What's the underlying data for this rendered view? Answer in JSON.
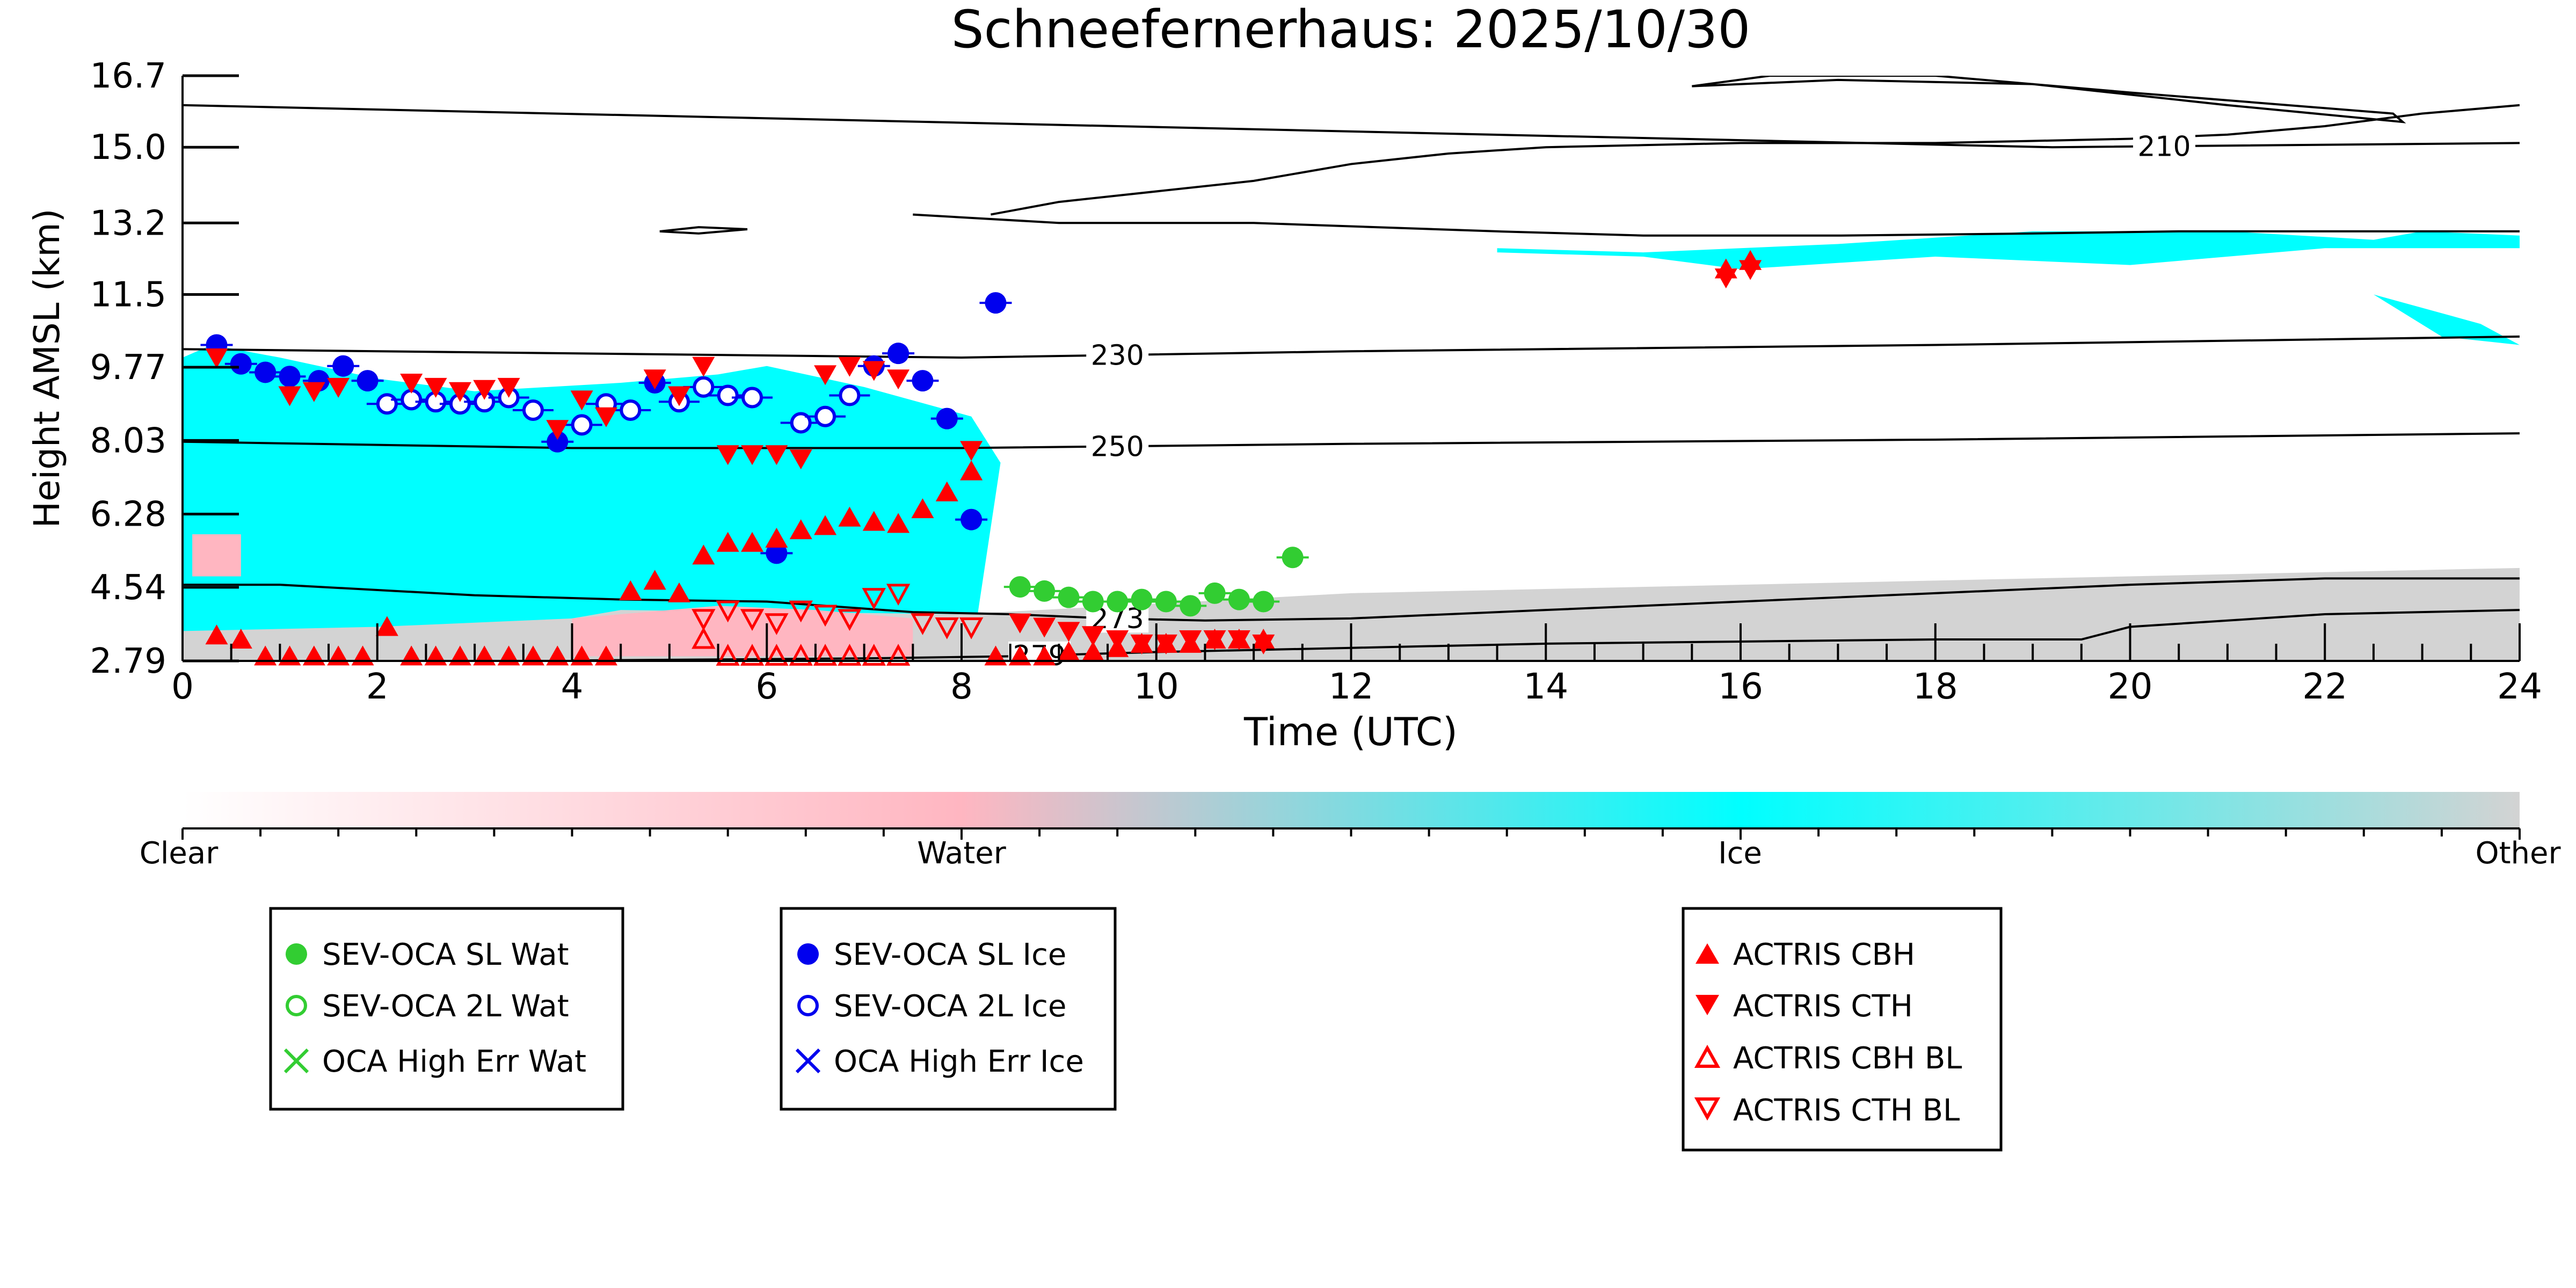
{
  "colors": {
    "clear": "#ffffff",
    "water": "#ffb6c1",
    "ice": "#00ffff",
    "other": "#d3d3d3",
    "sev_wat": "#32cd32",
    "sev_ice": "#0000ee",
    "actris": "#ff0000",
    "contour": "#000000"
  },
  "chart_data": {
    "type": "scatter",
    "title": "Schneefernerhaus: 2025/10/30",
    "xlabel": "Time (UTC)",
    "ylabel": "Height AMSL (km)",
    "xlim": [
      0,
      24
    ],
    "ylim": [
      2.79,
      16.7
    ],
    "xticks": [
      "0",
      "2",
      "4",
      "6",
      "8",
      "10",
      "12",
      "14",
      "16",
      "18",
      "20",
      "22",
      "24"
    ],
    "yticks": [
      "2.79",
      "4.54",
      "6.28",
      "8.03",
      "9.77",
      "11.5",
      "13.2",
      "15.0",
      "16.7"
    ],
    "colorbar": {
      "labels": [
        "Clear",
        "Water",
        "Ice",
        "Other"
      ]
    },
    "contours": [
      {
        "label": "210",
        "x": [
          0,
          19.2,
          24
        ],
        "y": [
          16.0,
          15.0,
          15.1
        ]
      },
      {
        "label": "230",
        "x": [
          0,
          8,
          12,
          18,
          24
        ],
        "y": [
          10.2,
          10.0,
          10.15,
          10.3,
          10.5
        ]
      },
      {
        "label": "250",
        "x": [
          0,
          4,
          8,
          12,
          18,
          24
        ],
        "y": [
          8.0,
          7.85,
          7.85,
          7.95,
          8.05,
          8.2
        ]
      },
      {
        "label": "273",
        "x": [
          0,
          1,
          3,
          4.5,
          6,
          7.5,
          8.5,
          9.5,
          10.5,
          12,
          14,
          16,
          18,
          20,
          22,
          24
        ],
        "y": [
          4.6,
          4.6,
          4.35,
          4.25,
          4.2,
          3.95,
          3.9,
          3.8,
          3.75,
          3.8,
          4.0,
          4.2,
          4.4,
          4.6,
          4.75,
          4.75
        ]
      },
      {
        "label": "279",
        "x": [
          4,
          7,
          8.5,
          10,
          12,
          14,
          16,
          18,
          19.5,
          20,
          22,
          24
        ],
        "y": [
          2.8,
          2.85,
          2.9,
          3.0,
          3.1,
          3.2,
          3.25,
          3.3,
          3.3,
          3.6,
          3.9,
          4.0
        ]
      },
      {
        "label": "",
        "x": [
          7.5,
          9,
          11,
          13.5,
          15,
          17,
          19,
          20.5,
          22,
          24
        ],
        "y": [
          13.4,
          13.2,
          13.2,
          13.0,
          12.9,
          12.9,
          12.95,
          13.0,
          13.0,
          13.0
        ]
      },
      {
        "label": "",
        "x": [
          8.3,
          9,
          11,
          12,
          13,
          14,
          15,
          16,
          17,
          18,
          19,
          20,
          21,
          22,
          23,
          24
        ],
        "y": [
          13.4,
          13.7,
          14.2,
          14.6,
          14.85,
          15.0,
          15.05,
          15.1,
          15.1,
          15.1,
          15.15,
          15.2,
          15.3,
          15.5,
          15.8,
          16.0
        ]
      },
      {
        "label": "",
        "x": [
          15.5,
          17,
          19,
          21,
          22.8,
          22.7,
          20,
          18,
          16.3,
          15.5
        ],
        "y": [
          16.45,
          16.6,
          16.5,
          16.0,
          15.6,
          15.8,
          16.3,
          16.7,
          16.7,
          16.45
        ]
      },
      {
        "label": "",
        "x": [
          4.9,
          5.3,
          5.8,
          5.3,
          4.9
        ],
        "y": [
          13.0,
          13.1,
          13.05,
          12.95,
          13.0
        ]
      }
    ],
    "regions": [
      {
        "class": "ice",
        "x": [
          0,
          0.3,
          1,
          2,
          3,
          4.5,
          5.5,
          6,
          7,
          8.1,
          8.4,
          8.1,
          7,
          6,
          4,
          2,
          0
        ],
        "y": [
          10.0,
          10.3,
          10.0,
          9.5,
          9.2,
          9.4,
          9.6,
          9.8,
          9.3,
          8.6,
          7.5,
          2.9,
          2.9,
          2.9,
          2.9,
          2.9,
          2.9
        ]
      },
      {
        "class": "ice",
        "x": [
          9.5,
          11,
          12,
          11.5,
          10,
          9.5
        ],
        "y": [
          3.8,
          3.7,
          3.4,
          2.8,
          2.8,
          3.5
        ]
      },
      {
        "class": "ice",
        "x": [
          13.5,
          15,
          17,
          19,
          21,
          22.5,
          23,
          24,
          24,
          22,
          20,
          18,
          16,
          15,
          13.5
        ],
        "y": [
          12.6,
          12.5,
          12.7,
          13.0,
          13.0,
          12.8,
          13.0,
          12.9,
          12.6,
          12.6,
          12.2,
          12.4,
          12.1,
          12.4,
          12.5
        ]
      },
      {
        "class": "ice",
        "x": [
          22.5,
          23.2,
          24,
          23.6,
          22.5
        ],
        "y": [
          11.5,
          10.5,
          10.3,
          10.8,
          11.5
        ]
      },
      {
        "class": "other",
        "x": [
          0,
          2,
          4,
          4.5,
          8,
          12,
          14,
          16,
          18,
          20,
          22,
          24,
          24,
          0
        ],
        "y": [
          3.5,
          3.6,
          3.8,
          4.0,
          3.9,
          4.4,
          4.5,
          4.6,
          4.7,
          4.8,
          4.9,
          5.0,
          2.79,
          2.79
        ]
      },
      {
        "class": "water",
        "x": [
          4,
          5.5,
          6.5,
          7.5,
          7.5,
          4
        ],
        "y": [
          3.8,
          4.1,
          4.0,
          3.8,
          2.9,
          2.9
        ]
      },
      {
        "class": "water",
        "x": [
          0.1,
          0.6,
          0.6,
          0.1
        ],
        "y": [
          5.8,
          5.8,
          4.8,
          4.8
        ]
      }
    ],
    "series": [
      {
        "name": "SEV-OCA SL Wat",
        "marker": "circle",
        "x": [
          8.6,
          8.85,
          9.1,
          9.35,
          9.6,
          9.85,
          10.1,
          10.35,
          10.6,
          10.85,
          11.1,
          11.4
        ],
        "y": [
          4.55,
          4.45,
          4.3,
          4.2,
          4.2,
          4.25,
          4.2,
          4.1,
          4.4,
          4.25,
          4.2,
          5.25
        ]
      },
      {
        "name": "SEV-OCA 2L Wat",
        "marker": "circle-open",
        "x": [],
        "y": []
      },
      {
        "name": "OCA High Err Wat",
        "marker": "x",
        "x": [],
        "y": []
      },
      {
        "name": "SEV-OCA SL Ice",
        "marker": "circle",
        "x": [
          0.35,
          0.6,
          0.85,
          1.1,
          1.4,
          1.65,
          1.9,
          3.85,
          4.85,
          6.1,
          7.1,
          7.35,
          7.6,
          7.85,
          8.1,
          8.35
        ],
        "y": [
          10.3,
          9.85,
          9.65,
          9.55,
          9.45,
          9.8,
          9.45,
          8.0,
          9.4,
          5.35,
          9.8,
          10.1,
          9.45,
          8.55,
          6.15,
          11.3
        ]
      },
      {
        "name": "SEV-OCA 2L Ice",
        "marker": "circle-open",
        "x": [
          2.1,
          2.35,
          2.6,
          2.85,
          3.1,
          3.35,
          3.6,
          4.1,
          4.35,
          4.6,
          5.1,
          5.35,
          5.6,
          5.85,
          6.35,
          6.6,
          6.85
        ],
        "y": [
          8.9,
          9.0,
          8.95,
          8.9,
          8.95,
          9.05,
          8.75,
          8.4,
          8.9,
          8.75,
          8.95,
          9.3,
          9.1,
          9.05,
          8.45,
          8.6,
          9.1
        ]
      },
      {
        "name": "OCA High Err Ice",
        "marker": "x",
        "x": [],
        "y": []
      },
      {
        "name": "ACTRIS CBH",
        "marker": "triangle-up",
        "x": [
          0.35,
          0.6,
          0.85,
          1.1,
          1.35,
          1.6,
          1.85,
          2.1,
          2.35,
          2.6,
          2.85,
          3.1,
          3.35,
          3.6,
          3.85,
          4.1,
          4.35,
          4.6,
          4.85,
          5.1,
          5.35,
          5.6,
          5.85,
          6.1,
          6.35,
          6.6,
          6.85,
          7.1,
          7.35,
          7.6,
          7.85,
          8.1,
          8.35,
          8.6,
          8.85,
          9.1,
          9.35,
          9.6,
          9.85,
          10.1,
          10.35,
          10.6,
          10.85,
          11.1,
          15.85,
          16.1
        ],
        "y": [
          3.4,
          3.3,
          2.9,
          2.9,
          2.9,
          2.9,
          2.9,
          3.6,
          2.9,
          2.9,
          2.9,
          2.9,
          2.9,
          2.9,
          2.9,
          2.9,
          2.9,
          4.45,
          4.7,
          4.4,
          5.3,
          5.6,
          5.6,
          5.7,
          5.9,
          6.0,
          6.2,
          6.1,
          6.05,
          6.4,
          6.8,
          7.3,
          2.9,
          2.9,
          2.9,
          3.0,
          3.0,
          3.1,
          3.2,
          3.2,
          3.2,
          3.3,
          3.3,
          3.3,
          12.1,
          12.3
        ]
      },
      {
        "name": "ACTRIS CTH",
        "marker": "triangle-down",
        "x": [
          0.35,
          1.1,
          1.35,
          1.6,
          2.35,
          2.6,
          2.85,
          3.1,
          3.35,
          3.85,
          4.1,
          4.35,
          4.85,
          5.1,
          5.35,
          5.6,
          5.85,
          6.1,
          6.35,
          6.6,
          6.85,
          7.1,
          7.35,
          8.1,
          8.6,
          8.85,
          9.1,
          9.35,
          9.6,
          9.85,
          10.1,
          10.35,
          10.6,
          10.85,
          11.1,
          15.85,
          16.1
        ],
        "y": [
          10.0,
          9.1,
          9.2,
          9.3,
          9.4,
          9.3,
          9.2,
          9.25,
          9.3,
          8.3,
          9.0,
          8.6,
          9.5,
          9.1,
          9.8,
          7.7,
          7.7,
          7.7,
          7.6,
          9.6,
          9.8,
          9.7,
          9.5,
          7.8,
          3.7,
          3.6,
          3.5,
          3.4,
          3.3,
          3.2,
          3.2,
          3.3,
          3.3,
          3.3,
          3.2,
          11.9,
          12.1
        ]
      },
      {
        "name": "ACTRIS CBH BL",
        "marker": "triangle-up-open",
        "x": [
          5.35,
          5.6,
          5.85,
          6.1,
          6.35,
          6.6,
          6.85,
          7.1,
          7.35
        ],
        "y": [
          3.3,
          2.9,
          2.9,
          2.9,
          2.9,
          2.9,
          2.9,
          2.9,
          2.9
        ]
      },
      {
        "name": "ACTRIS CTH BL",
        "marker": "triangle-down-open",
        "x": [
          5.35,
          5.6,
          5.85,
          6.1,
          6.35,
          6.6,
          6.85,
          7.1,
          7.35,
          7.6,
          7.85,
          8.1
        ],
        "y": [
          3.8,
          4.0,
          3.8,
          3.7,
          4.0,
          3.9,
          3.8,
          4.3,
          4.4,
          3.7,
          3.6,
          3.6
        ]
      }
    ],
    "legends": [
      {
        "position": "bottom-left",
        "entries": [
          "SEV-OCA SL Wat",
          "SEV-OCA 2L Wat",
          "OCA High Err Wat"
        ]
      },
      {
        "position": "bottom-center",
        "entries": [
          "SEV-OCA SL Ice",
          "SEV-OCA 2L Ice",
          "OCA High Err Ice"
        ]
      },
      {
        "position": "bottom-right",
        "entries": [
          "ACTRIS CBH",
          "ACTRIS CTH",
          "ACTRIS CBH BL",
          "ACTRIS CTH BL"
        ]
      }
    ]
  }
}
